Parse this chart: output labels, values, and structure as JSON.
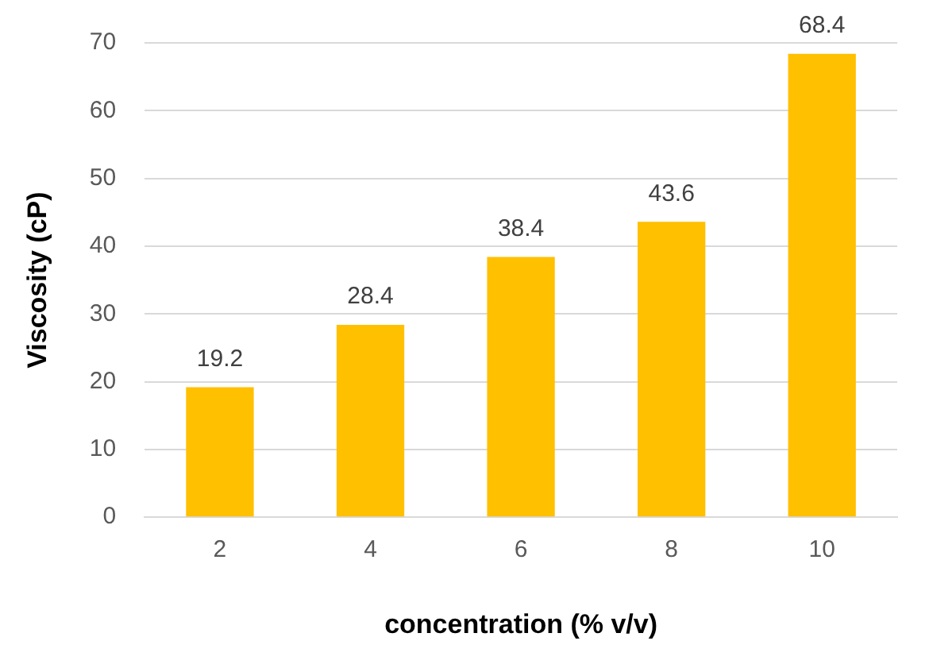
{
  "chart_data": {
    "type": "bar",
    "xlabel": "concentration (% v/v)",
    "ylabel": "Viscosity (cP)",
    "categories": [
      "2",
      "4",
      "6",
      "8",
      "10"
    ],
    "values": [
      19.2,
      28.4,
      38.4,
      43.6,
      68.4
    ],
    "color": "#ffc000",
    "ylim": [
      0,
      70
    ],
    "yticks": [
      0,
      10,
      20,
      30,
      40,
      50,
      60,
      70
    ],
    "grid": "y",
    "data_labels": true
  }
}
